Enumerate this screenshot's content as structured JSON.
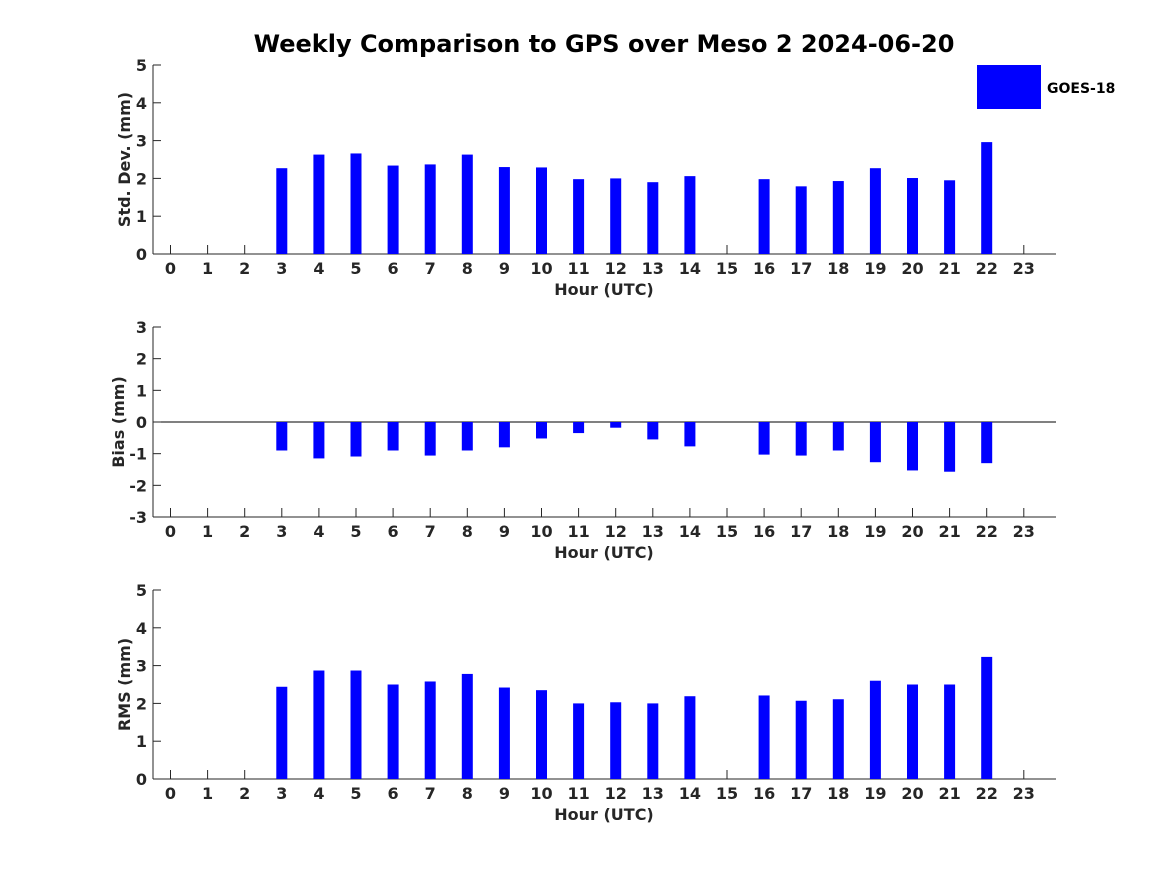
{
  "figure_title": "Weekly Comparison to GPS over Meso 2 2024-06-20",
  "legend": {
    "label": "GOES-18",
    "color": "#0000ff"
  },
  "colors": {
    "bar": "#0000ff",
    "axis": "#262626"
  },
  "chart_data": [
    {
      "id": "std",
      "type": "bar",
      "title": "Weekly Comparison to GPS over Meso 2 2024-06-20",
      "xlabel": "Hour (UTC)",
      "ylabel": "Std. Dev. (mm)",
      "ylim": [
        0,
        5
      ],
      "yticks": [
        0,
        1,
        2,
        3,
        4,
        5
      ],
      "categories": [
        "0",
        "1",
        "2",
        "3",
        "4",
        "5",
        "6",
        "7",
        "8",
        "9",
        "10",
        "11",
        "12",
        "13",
        "14",
        "15",
        "16",
        "17",
        "18",
        "19",
        "20",
        "21",
        "22",
        "23"
      ],
      "series": [
        {
          "name": "GOES-18",
          "values": [
            null,
            null,
            null,
            2.27,
            2.63,
            2.66,
            2.34,
            2.37,
            2.63,
            2.3,
            2.29,
            1.98,
            2.0,
            1.9,
            2.06,
            null,
            1.98,
            1.79,
            1.93,
            2.27,
            2.01,
            1.95,
            2.96,
            null
          ]
        }
      ]
    },
    {
      "id": "bias",
      "type": "bar",
      "title": "",
      "xlabel": "Hour (UTC)",
      "ylabel": "Bias (mm)",
      "ylim": [
        -3,
        3
      ],
      "yticks": [
        -3,
        -2,
        -1,
        0,
        1,
        2,
        3
      ],
      "zero_line": true,
      "categories": [
        "0",
        "1",
        "2",
        "3",
        "4",
        "5",
        "6",
        "7",
        "8",
        "9",
        "10",
        "11",
        "12",
        "13",
        "14",
        "15",
        "16",
        "17",
        "18",
        "19",
        "20",
        "21",
        "22",
        "23"
      ],
      "series": [
        {
          "name": "GOES-18",
          "values": [
            null,
            null,
            null,
            -0.9,
            -1.15,
            -1.09,
            -0.9,
            -1.06,
            -0.9,
            -0.8,
            -0.52,
            -0.35,
            -0.18,
            -0.55,
            -0.77,
            null,
            -1.03,
            -1.06,
            -0.9,
            -1.27,
            -1.53,
            -1.57,
            -1.3,
            null
          ]
        }
      ]
    },
    {
      "id": "rms",
      "type": "bar",
      "title": "",
      "xlabel": "Hour (UTC)",
      "ylabel": "RMS (mm)",
      "ylim": [
        0,
        5
      ],
      "yticks": [
        0,
        1,
        2,
        3,
        4,
        5
      ],
      "categories": [
        "0",
        "1",
        "2",
        "3",
        "4",
        "5",
        "6",
        "7",
        "8",
        "9",
        "10",
        "11",
        "12",
        "13",
        "14",
        "15",
        "16",
        "17",
        "18",
        "19",
        "20",
        "21",
        "22",
        "23"
      ],
      "series": [
        {
          "name": "GOES-18",
          "values": [
            null,
            null,
            null,
            2.44,
            2.87,
            2.87,
            2.5,
            2.58,
            2.78,
            2.42,
            2.35,
            2.0,
            2.03,
            2.0,
            2.19,
            null,
            2.21,
            2.07,
            2.11,
            2.6,
            2.5,
            2.5,
            3.23,
            null
          ]
        }
      ]
    }
  ]
}
